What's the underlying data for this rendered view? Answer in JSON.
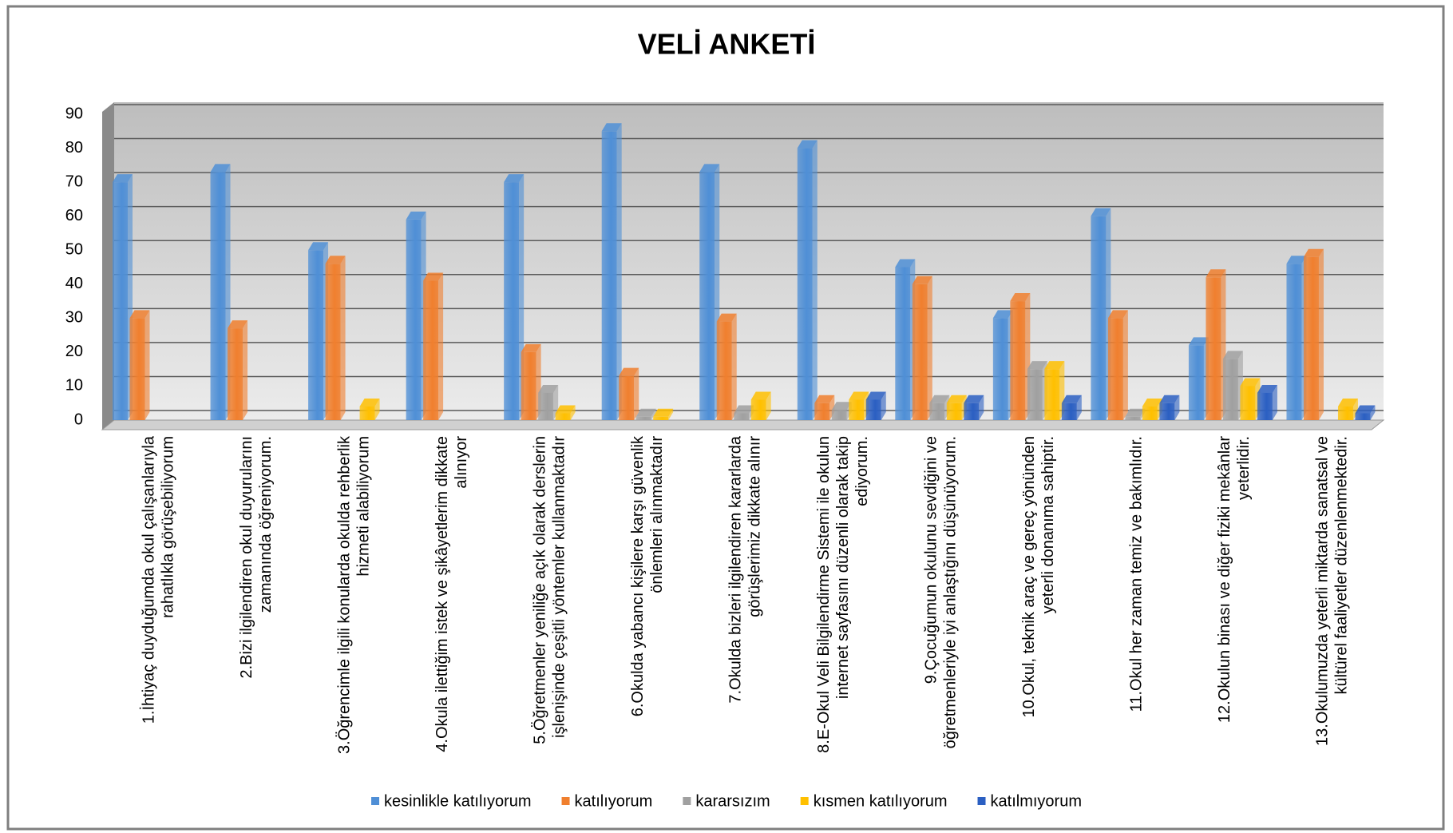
{
  "chart_data": {
    "type": "bar",
    "title": "VELİ ANKETİ",
    "categories": [
      "1.İhtiyaç duyduğumda okul çalışanlarıyla rahatlıkla görüşebiliyorum",
      "2.Bizi ilgilendiren okul duyurularını zamanında öğreniyorum.",
      "3.Öğrencimle ilgili konularda okulda rehberlik hizmeti alabiliyorum",
      "4.Okula ilettiğim istek ve şikâyetlerim dikkate alınıyor",
      "5.Öğretmenler yeniliğe açık olarak derslerin işlenişinde çeşitli yöntemler kullanmaktadır",
      "6.Okulda yabancı kişilere karşı güvenlik önlemleri alınmaktadır",
      "7.Okulda bizleri ilgilendiren kararlarda görüşlerimiz dikkate alınır",
      "8.E-Okul Veli Bilgilendirme Sistemi ile okulun internet sayfasını düzenli olarak takip ediyorum.",
      "9.Çocuğumun okulunu sevdiğini ve öğretmenleriyle iyi anlaştığını düşünüyorum.",
      "10.Okul, teknik araç ve gereç yönünden yeterli donanıma sahiptir.",
      "11.Okul her zaman temiz ve bakımlıdır.",
      "12.Okulun binası ve diğer fiziki mekânlar yeterlidir.",
      "13.Okulumuzda yeterli miktarda sanatsal ve kültürel faaliyetler düzenlenmektedir."
    ],
    "series": [
      {
        "name": "kesinlikle katılıyorum",
        "color": "#4f8fd6",
        "values": [
          70,
          73,
          50,
          59,
          70,
          85,
          73,
          80,
          45,
          30,
          60,
          22,
          46
        ]
      },
      {
        "name": "katılıyorum",
        "color": "#f07f2e",
        "values": [
          30,
          27,
          46,
          41,
          20,
          13,
          29,
          5,
          40,
          35,
          30,
          42,
          48
        ]
      },
      {
        "name": "kararsızım",
        "color": "#a0a0a0",
        "values": [
          0,
          0,
          0,
          0,
          8,
          1,
          2,
          3,
          5,
          15,
          1,
          18,
          0
        ]
      },
      {
        "name": "kısmen katılıyorum",
        "color": "#ffc000",
        "values": [
          0,
          0,
          4,
          0,
          2,
          1,
          6,
          6,
          5,
          15,
          4,
          10,
          4
        ]
      },
      {
        "name": "katılmıyorum",
        "color": "#2b5fc2",
        "values": [
          0,
          0,
          0,
          0,
          0,
          0,
          0,
          6,
          5,
          5,
          5,
          8,
          2
        ]
      }
    ],
    "ylim": [
      0,
      90
    ],
    "yticks": [
      0,
      10,
      20,
      30,
      40,
      50,
      60,
      70,
      80,
      90
    ],
    "grid": true,
    "legend": "bottom"
  }
}
